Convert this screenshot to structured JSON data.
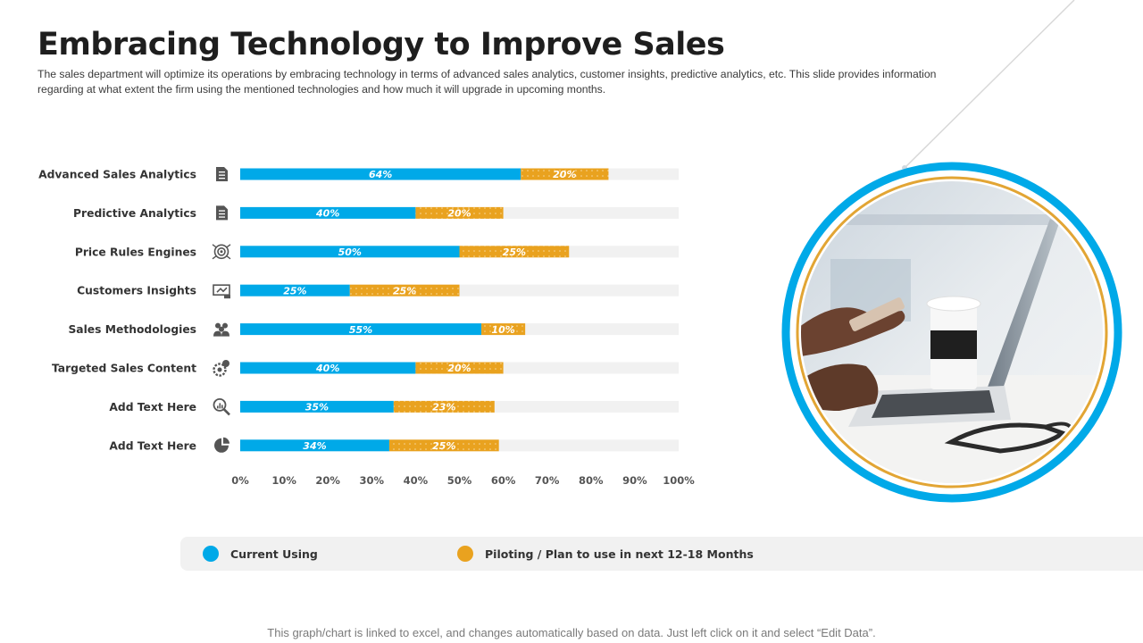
{
  "title": "Embracing Technology to Improve Sales",
  "subtitle": "The sales department will optimize its operations by embracing technology in terms of advanced sales analytics, customer insights, predictive analytics, etc. This slide provides information regarding at what extent the firm using the mentioned technologies and how much it will upgrade in upcoming months.",
  "footer": "This graph/chart is linked to excel, and changes automatically based on data. Just left click on it and select “Edit Data”.",
  "colors": {
    "current": "#00a9e8",
    "piloting": "#e9a21f",
    "track": "#f1f1f1"
  },
  "legend": [
    {
      "label": "Current Using",
      "color": "#00a9e8"
    },
    {
      "label": "Piloting / Plan to use in next 12-18 Months",
      "color": "#e9a21f"
    }
  ],
  "chart_data": {
    "type": "bar",
    "orientation": "horizontal",
    "stacked": true,
    "categories": [
      "Advanced Sales Analytics",
      "Predictive Analytics",
      "Price Rules Engines",
      "Customers Insights",
      "Sales Methodologies",
      "Targeted Sales Content",
      "Add Text Here",
      "Add Text Here"
    ],
    "icons": [
      "document-icon",
      "document-icon",
      "target-icon",
      "presentation-icon",
      "team-icon",
      "gear-target-icon",
      "analytics-search-icon",
      "pie-chart-icon"
    ],
    "series": [
      {
        "name": "Current Using",
        "values": [
          64,
          40,
          50,
          25,
          55,
          40,
          35,
          34
        ],
        "labels": [
          "64%",
          "40%",
          "50%",
          "25%",
          "55%",
          "40%",
          "35%",
          "34%"
        ]
      },
      {
        "name": "Piloting / Plan to use in next 12-18 Months",
        "values": [
          20,
          20,
          25,
          25,
          10,
          20,
          23,
          25
        ],
        "labels": [
          "20%",
          "20%",
          "25%",
          "25%",
          "10%",
          "20%",
          "23%",
          "25%"
        ]
      }
    ],
    "xlim": [
      0,
      100
    ],
    "xticks": [
      "0%",
      "10%",
      "20%",
      "30%",
      "40%",
      "50%",
      "60%",
      "70%",
      "80%",
      "90%",
      "100%"
    ],
    "legend_position": "bottom",
    "grid": false
  }
}
